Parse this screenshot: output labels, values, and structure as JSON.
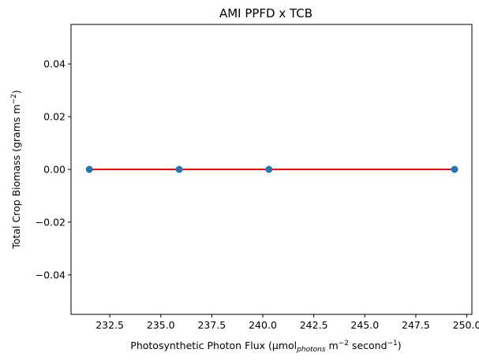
{
  "chart_data": {
    "type": "scatter",
    "title": "AMI PPFD x TCB",
    "xlabel": {
      "main": "Photosynthetic Photon Flux (μmol",
      "sub": "photons",
      "mid1": " m",
      "sup1": "−2",
      "mid2": " second",
      "sup2": "−1",
      "end": ")"
    },
    "ylabel": {
      "main": "Total Crop Biomass (grams m",
      "sup": "−2",
      "end": ")"
    },
    "xlim": [
      230.6,
      250.25
    ],
    "ylim": [
      -0.055,
      0.055
    ],
    "xticks": [
      232.5,
      235.0,
      237.5,
      240.0,
      242.5,
      245.0,
      247.5,
      250.0
    ],
    "xtick_labels": [
      "232.5",
      "235.0",
      "237.5",
      "240.0",
      "242.5",
      "245.0",
      "247.5",
      "250.0"
    ],
    "yticks": [
      0.04,
      0.02,
      0.0,
      -0.02,
      -0.04
    ],
    "ytick_labels": [
      "0.04",
      "0.02",
      "0.00",
      "−0.02",
      "−0.04"
    ],
    "series": [
      {
        "type": "scatter",
        "x": [
          231.5,
          235.9,
          240.3,
          249.4
        ],
        "y": [
          0,
          0,
          0,
          0
        ],
        "color": "#1f77b4"
      },
      {
        "type": "line",
        "x": [
          231.5,
          249.4
        ],
        "y": [
          0,
          0
        ],
        "color": "#ff0000"
      }
    ],
    "grid": false,
    "legend": "none"
  }
}
